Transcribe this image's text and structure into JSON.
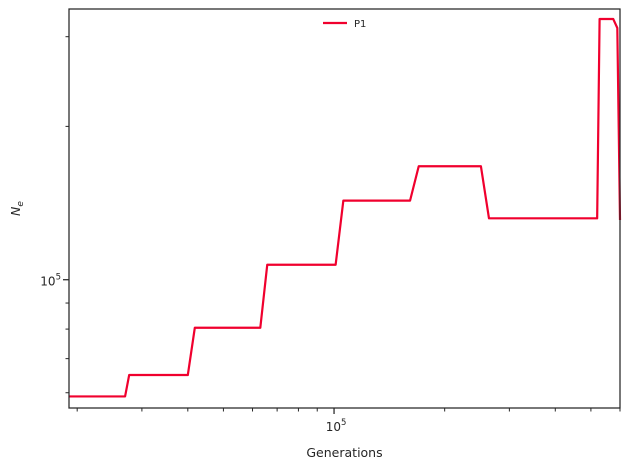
{
  "chart_data": {
    "type": "line",
    "xlabel": "Generations",
    "ylabel_base": "N",
    "ylabel_sub": "e",
    "xscale": "log",
    "yscale": "log",
    "xlim": [
      19000,
      600000
    ],
    "ylim": [
      56000,
      340000
    ],
    "grid": false,
    "legend_position": "top-center",
    "x_tick_label": {
      "base": "10",
      "exp": "5",
      "value": 100000
    },
    "y_tick_label": {
      "base": "10",
      "exp": "5",
      "value": 100000
    },
    "series": [
      {
        "name": "P1",
        "color": "#f0002e",
        "x": [
          19000,
          27000,
          27700,
          40000,
          41800,
          63000,
          65800,
          101000,
          106000,
          161000,
          170000,
          251000,
          264000,
          520000,
          528000,
          575000,
          590000,
          600000
        ],
        "y": [
          59000,
          59000,
          65000,
          65000,
          80500,
          80500,
          107000,
          107000,
          143000,
          143000,
          167000,
          167000,
          132000,
          132000,
          325000,
          325000,
          312000,
          131000
        ]
      }
    ]
  }
}
